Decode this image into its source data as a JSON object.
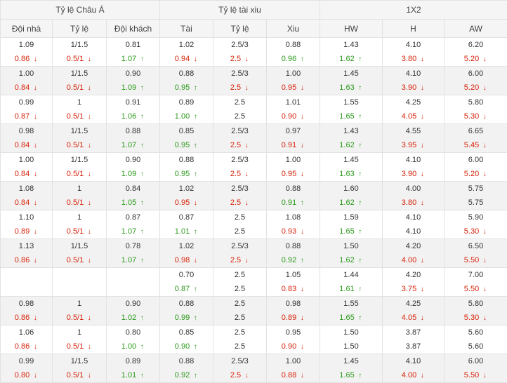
{
  "groups": [
    {
      "label": "Tỷ lệ Châu Á",
      "span": 3
    },
    {
      "label": "Tỷ lệ tài xiu",
      "span": 3
    },
    {
      "label": "1X2",
      "span": 3
    }
  ],
  "columns": [
    "Đội nhà",
    "Tỷ lệ",
    "Đội khách",
    "Tài",
    "Tỷ lệ",
    "Xiu",
    "HW",
    "H",
    "AW"
  ],
  "arrows": {
    "down": "↓",
    "up": "↑"
  },
  "rows": [
    [
      [
        "1.09",
        "0.86",
        "d"
      ],
      [
        "1/1.5",
        "0.5/1",
        "d"
      ],
      [
        "0.81",
        "1.07",
        "u"
      ],
      [
        "1.02",
        "0.94",
        "d"
      ],
      [
        "2.5/3",
        "2.5",
        "d"
      ],
      [
        "0.88",
        "0.96",
        "u"
      ],
      [
        "1.43",
        "1.62",
        "u"
      ],
      [
        "4.10",
        "3.80",
        "d"
      ],
      [
        "6.20",
        "5.20",
        "d"
      ]
    ],
    [
      [
        "1.00",
        "0.84",
        "d"
      ],
      [
        "1/1.5",
        "0.5/1",
        "d"
      ],
      [
        "0.90",
        "1.09",
        "u"
      ],
      [
        "0.88",
        "0.95",
        "u"
      ],
      [
        "2.5/3",
        "2.5",
        "d"
      ],
      [
        "1.00",
        "0.95",
        "d"
      ],
      [
        "1.45",
        "1.63",
        "u"
      ],
      [
        "4.10",
        "3.90",
        "d"
      ],
      [
        "6.00",
        "5.20",
        "d"
      ]
    ],
    [
      [
        "0.99",
        "0.87",
        "d"
      ],
      [
        "1",
        "0.5/1",
        "d"
      ],
      [
        "0.91",
        "1.06",
        "u"
      ],
      [
        "0.89",
        "1.00",
        "u"
      ],
      [
        "2.5",
        "2.5",
        ""
      ],
      [
        "1.01",
        "0.90",
        "d"
      ],
      [
        "1.55",
        "1.65",
        "u"
      ],
      [
        "4.25",
        "4.05",
        "d"
      ],
      [
        "5.80",
        "5.30",
        "d"
      ]
    ],
    [
      [
        "0.98",
        "0.84",
        "d"
      ],
      [
        "1/1.5",
        "0.5/1",
        "d"
      ],
      [
        "0.88",
        "1.07",
        "u"
      ],
      [
        "0.85",
        "0.95",
        "u"
      ],
      [
        "2.5/3",
        "2.5",
        "d"
      ],
      [
        "0.97",
        "0.91",
        "d"
      ],
      [
        "1.43",
        "1.62",
        "u"
      ],
      [
        "4.55",
        "3.95",
        "d"
      ],
      [
        "6.65",
        "5.45",
        "d"
      ]
    ],
    [
      [
        "1.00",
        "0.84",
        "d"
      ],
      [
        "1/1.5",
        "0.5/1",
        "d"
      ],
      [
        "0.90",
        "1.09",
        "u"
      ],
      [
        "0.88",
        "0.95",
        "u"
      ],
      [
        "2.5/3",
        "2.5",
        "d"
      ],
      [
        "1.00",
        "0.95",
        "d"
      ],
      [
        "1.45",
        "1.63",
        "u"
      ],
      [
        "4.10",
        "3.90",
        "d"
      ],
      [
        "6.00",
        "5.20",
        "d"
      ]
    ],
    [
      [
        "1.08",
        "0.84",
        "d"
      ],
      [
        "1",
        "0.5/1",
        "d"
      ],
      [
        "0.84",
        "1.05",
        "u"
      ],
      [
        "1.02",
        "0.95",
        "d"
      ],
      [
        "2.5/3",
        "2.5",
        "d"
      ],
      [
        "0.88",
        "0.91",
        "u"
      ],
      [
        "1.60",
        "1.62",
        "u"
      ],
      [
        "4.00",
        "3.80",
        "d"
      ],
      [
        "5.75",
        "5.75",
        ""
      ]
    ],
    [
      [
        "1.10",
        "0.89",
        "d"
      ],
      [
        "1",
        "0.5/1",
        "d"
      ],
      [
        "0.87",
        "1.07",
        "u"
      ],
      [
        "0.87",
        "1.01",
        "u"
      ],
      [
        "2.5",
        "2.5",
        ""
      ],
      [
        "1.08",
        "0.93",
        "d"
      ],
      [
        "1.59",
        "1.65",
        "u"
      ],
      [
        "4.10",
        "4.10",
        ""
      ],
      [
        "5.90",
        "5.30",
        "d"
      ]
    ],
    [
      [
        "1.13",
        "0.86",
        "d"
      ],
      [
        "1/1.5",
        "0.5/1",
        "d"
      ],
      [
        "0.78",
        "1.07",
        "u"
      ],
      [
        "1.02",
        "0.98",
        "d"
      ],
      [
        "2.5/3",
        "2.5",
        "d"
      ],
      [
        "0.88",
        "0.92",
        "u"
      ],
      [
        "1.50",
        "1.62",
        "u"
      ],
      [
        "4.20",
        "4.00",
        "d"
      ],
      [
        "6.50",
        "5.50",
        "d"
      ]
    ],
    [
      [
        "",
        "",
        ""
      ],
      [
        "",
        "",
        ""
      ],
      [
        "",
        "",
        ""
      ],
      [
        "0.70",
        "0.87",
        "u"
      ],
      [
        "2.5",
        "2.5",
        ""
      ],
      [
        "1.05",
        "0.83",
        "d"
      ],
      [
        "1.44",
        "1.61",
        "u"
      ],
      [
        "4.20",
        "3.75",
        "d"
      ],
      [
        "7.00",
        "5.50",
        "d"
      ]
    ],
    [
      [
        "0.98",
        "0.86",
        "d"
      ],
      [
        "1",
        "0.5/1",
        "d"
      ],
      [
        "0.90",
        "1.02",
        "u"
      ],
      [
        "0.88",
        "0.99",
        "u"
      ],
      [
        "2.5",
        "2.5",
        ""
      ],
      [
        "0.98",
        "0.89",
        "d"
      ],
      [
        "1.55",
        "1.65",
        "u"
      ],
      [
        "4.25",
        "4.05",
        "d"
      ],
      [
        "5.80",
        "5.30",
        "d"
      ]
    ],
    [
      [
        "1.06",
        "0.86",
        "d"
      ],
      [
        "1",
        "0.5/1",
        "d"
      ],
      [
        "0.80",
        "1.00",
        "u"
      ],
      [
        "0.85",
        "0.90",
        "u"
      ],
      [
        "2.5",
        "2.5",
        ""
      ],
      [
        "0.95",
        "0.90",
        "d"
      ],
      [
        "1.50",
        "1.50",
        ""
      ],
      [
        "3.87",
        "3.87",
        ""
      ],
      [
        "5.60",
        "5.60",
        ""
      ]
    ],
    [
      [
        "0.99",
        "0.80",
        "d"
      ],
      [
        "1/1.5",
        "0.5/1",
        "d"
      ],
      [
        "0.89",
        "1.01",
        "u"
      ],
      [
        "0.88",
        "0.92",
        "u"
      ],
      [
        "2.5/3",
        "2.5",
        "d"
      ],
      [
        "1.00",
        "0.88",
        "d"
      ],
      [
        "1.45",
        "1.65",
        "u"
      ],
      [
        "4.10",
        "4.00",
        "d"
      ],
      [
        "6.00",
        "5.50",
        "d"
      ]
    ]
  ]
}
